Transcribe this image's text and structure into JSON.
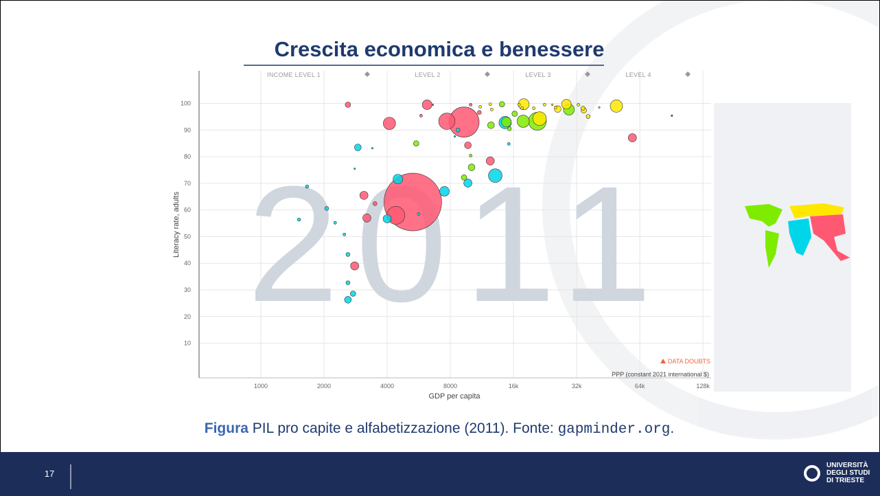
{
  "slide": {
    "title": "Crescita economica e benessere",
    "caption": {
      "label": "Figura",
      "text": "PIL pro capite e alfabetizzazione (2011). Fonte:",
      "source": "gapminder.org",
      "end": "."
    },
    "page_number": "17",
    "logo": [
      "UNIVERSITÀ",
      "DEGLI STUDI",
      "DI TRIESTE"
    ]
  },
  "chart_data": {
    "type": "scatter",
    "year_label": "2011",
    "xlabel": "GDP per capita",
    "ylabel": "Literacy rate, adults",
    "x_unit_note": "PPP (constant 2021 international $)",
    "warning": "DATA DOUBTS",
    "income_levels": [
      "INCOME LEVEL 1",
      "LEVEL 2",
      "LEVEL 3",
      "LEVEL 4"
    ],
    "xscale": "log",
    "grid": true,
    "xlim": [
      500,
      140000
    ],
    "ylim": [
      -3,
      112
    ],
    "xticks": [
      1000,
      2000,
      4000,
      8000,
      {
        "value": 16000,
        "label": "16k"
      },
      {
        "value": 32000,
        "label": "32k"
      },
      {
        "value": 64000,
        "label": "64k"
      },
      {
        "value": 128000,
        "label": "128k"
      }
    ],
    "yticks": [
      10,
      20,
      30,
      40,
      50,
      60,
      70,
      80,
      90,
      100
    ],
    "series": [
      {
        "color": "#ff5872",
        "x": [
          5300,
          4400,
          9300,
          7700,
          4100,
          6200,
          2600,
          3100,
          3200,
          3500,
          2800,
          5800,
          9700,
          12400,
          59000,
          11000,
          10000,
          6600
        ],
        "values": [
          63,
          58,
          93,
          93.3,
          92.5,
          99.5,
          99.5,
          65.5,
          57,
          62.4,
          39,
          95.4,
          84.3,
          78.4,
          87.1,
          96.6,
          99.5,
          99.5
        ],
        "sizes": [
          1240,
          120,
          340,
          100,
          57,
          35,
          11,
          25,
          25,
          6,
          25,
          3,
          17,
          25,
          25,
          6,
          3,
          1
        ]
      },
      {
        "color": "#00d5e9",
        "x": [
          13100,
          7500,
          9700,
          4500,
          4000,
          2900,
          2600,
          2750,
          2600,
          2600,
          2500,
          2260,
          2060,
          1660,
          1520,
          5650,
          14600,
          15200,
          8700,
          8400,
          2800,
          3400
        ],
        "values": [
          72.9,
          67,
          70.1,
          71.6,
          56.7,
          83.5,
          26.3,
          28.6,
          32.7,
          43.3,
          50.8,
          55.2,
          60.6,
          68.8,
          56.4,
          58.5,
          92.8,
          84.8,
          90,
          87.6,
          75.5,
          83.2
        ],
        "sizes": [
          70,
          35,
          25,
          35,
          25,
          17,
          17,
          11,
          6,
          6,
          3,
          3,
          6,
          4,
          4,
          3,
          57,
          3,
          6,
          1,
          1,
          1
        ]
      },
      {
        "color": "#7feb00",
        "x": [
          20800,
          17800,
          14800,
          29400,
          12500,
          10100,
          5500,
          9300,
          14100,
          15300,
          16200,
          10000
        ],
        "values": [
          93.3,
          93.3,
          93,
          97.7,
          91.8,
          76,
          85,
          72.2,
          99.7,
          90.5,
          96.1,
          80.4
        ],
        "sizes": [
          120,
          57,
          35,
          45,
          17,
          17,
          11,
          11,
          11,
          6,
          11,
          3
        ]
      },
      {
        "color": "#ffe700",
        "x": [
          49500,
          21300,
          17900,
          28600,
          26000,
          34600,
          36300,
          34300,
          25400,
          20000,
          17000,
          12400,
          12600,
          11100,
          32600,
          41000,
          22500,
          17600,
          24500
        ],
        "values": [
          99,
          94.3,
          99.7,
          99.7,
          97.9,
          97.4,
          95.1,
          98.2,
          98.5,
          98.2,
          99.5,
          99.7,
          97.7,
          98.7,
          99.5,
          98.5,
          99.5,
          98.2,
          99.5
        ],
        "sizes": [
          57,
          70,
          45,
          35,
          17,
          11,
          6,
          6,
          3,
          3,
          3,
          3,
          3,
          3,
          3,
          1,
          3,
          3,
          1
        ]
      },
      {
        "color": "#555555",
        "x": [
          91000
        ],
        "values": [
          95.4
        ],
        "sizes": [
          1
        ]
      }
    ]
  }
}
